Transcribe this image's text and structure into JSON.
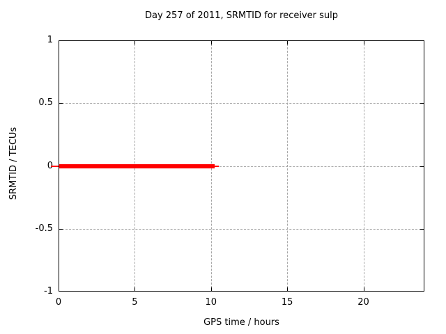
{
  "chart_data": {
    "type": "line",
    "title": "Day 257 of 2011, SRMTID for receiver sulp",
    "xlabel": "GPS time / hours",
    "ylabel": "SRMTID / TECUs",
    "xlim": [
      0,
      24
    ],
    "ylim": [
      -1,
      1
    ],
    "xticks": [
      0,
      5,
      10,
      15,
      20
    ],
    "xtick_labels": [
      "0",
      "5",
      "10",
      "15",
      "20"
    ],
    "yticks": [
      -1,
      -0.5,
      0,
      0.5,
      1
    ],
    "ytick_labels": [
      "-1",
      "-0.5",
      "0",
      "0.5",
      "1"
    ],
    "grid": true,
    "legend_position": "none",
    "series": [
      {
        "name": "SRMTID thin underlay line",
        "color": "#ff0000",
        "stroke_px": 2,
        "x": [
          -0.5,
          10.5
        ],
        "y": [
          0,
          0
        ]
      },
      {
        "name": "SRMTID",
        "color": "#ff0000",
        "stroke_px": 6,
        "x": [
          0,
          10.25
        ],
        "y": [
          0,
          0
        ]
      }
    ],
    "annotations": "SRMTID is constant at 0 TECUs from 0 h to about 10.25 h; no data after ~10.5 h"
  },
  "colors": {
    "background": "#ffffff",
    "border": "#000000",
    "grid": "#a6a6a6",
    "line": "#ff0000",
    "text": "#000000"
  }
}
